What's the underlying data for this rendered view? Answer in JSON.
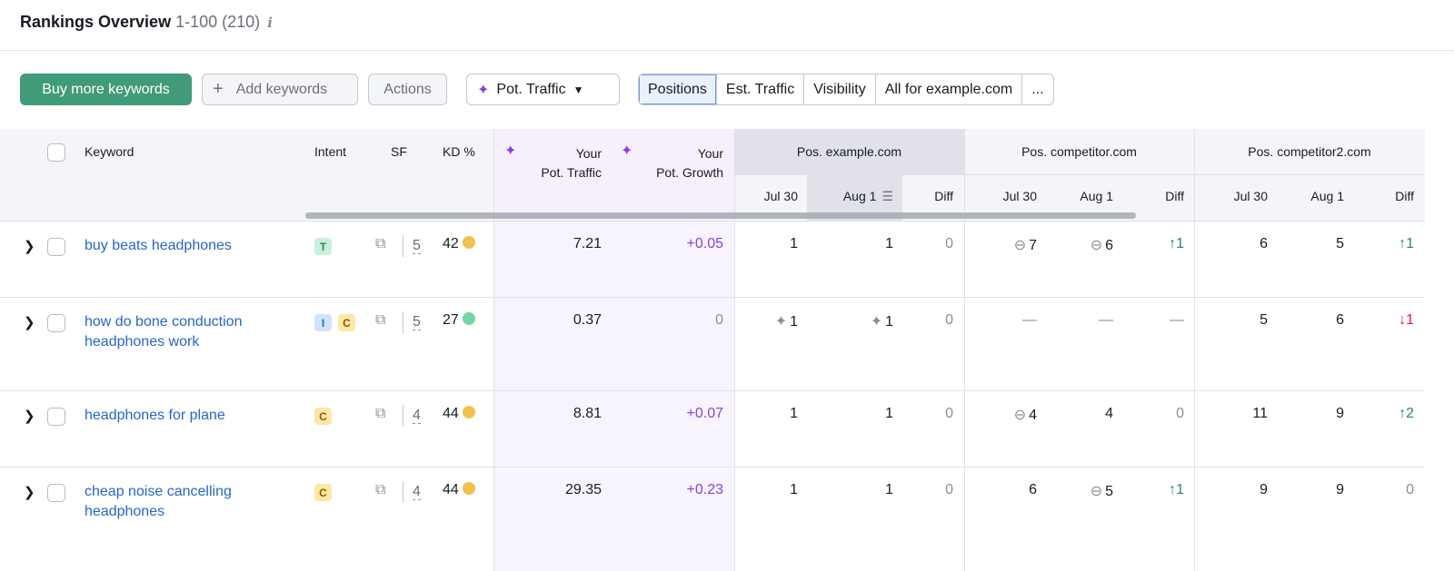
{
  "header": {
    "title": "Rankings Overview",
    "range": "1-100",
    "total": "(210)",
    "info_icon": "i"
  },
  "toolbar": {
    "buy": "Buy more keywords",
    "add": "Add keywords",
    "add_icon": "+",
    "actions": "Actions",
    "pot_traffic": "Pot. Traffic",
    "views": [
      "Positions",
      "Est. Traffic",
      "Visibility",
      "All for example.com",
      "..."
    ],
    "active_view": "Positions"
  },
  "columns": {
    "keyword": "Keyword",
    "intent": "Intent",
    "sf": "SF",
    "kd": "KD %",
    "pot_traffic": [
      "Your",
      "Pot. Traffic"
    ],
    "pot_growth": [
      "Your",
      "Pot. Growth"
    ],
    "groups": [
      "Pos. example.com",
      "Pos. competitor.com",
      "Pos. competitor2.com"
    ],
    "sub": [
      "Jul 30",
      "Aug 1",
      "Diff"
    ]
  },
  "colors": {
    "accent": "#419a78",
    "link": "#2766c9",
    "purple": "#8d3fe0",
    "up": "#2a8a5c",
    "down": "#d1202c",
    "kd_yellow": "#f3c04f",
    "kd_green": "#6fd8a4"
  },
  "rows": [
    {
      "keyword": "buy beats headphones",
      "intents": [
        "T"
      ],
      "sf": "5",
      "kd": "42",
      "kd_color": "#f3c04f",
      "pot_traffic": "7.21",
      "pot_growth": "+0.05",
      "pos": [
        [
          "1",
          "1",
          "0"
        ],
        [
          "7",
          "6",
          "↑1"
        ],
        [
          "6",
          "5",
          "↑1"
        ]
      ],
      "icons": [
        [
          "",
          "",
          ""
        ],
        [
          "link",
          "link",
          ""
        ],
        [
          "",
          "",
          ""
        ]
      ]
    },
    {
      "keyword": "how do bone conduction headphones work",
      "intents": [
        "I",
        "C"
      ],
      "sf": "5",
      "kd": "27",
      "kd_color": "#6fd8a4",
      "pot_traffic": "0.37",
      "pot_growth": "0",
      "pos": [
        [
          "1",
          "1",
          "0"
        ],
        [
          "—",
          "—",
          "—"
        ],
        [
          "5",
          "6",
          "↓1"
        ]
      ],
      "icons": [
        [
          "featured",
          "featured",
          ""
        ],
        [
          "",
          "",
          ""
        ],
        [
          "",
          "",
          ""
        ]
      ]
    },
    {
      "keyword": "headphones for plane",
      "intents": [
        "C"
      ],
      "sf": "4",
      "kd": "44",
      "kd_color": "#f3c04f",
      "pot_traffic": "8.81",
      "pot_growth": "+0.07",
      "pos": [
        [
          "1",
          "1",
          "0"
        ],
        [
          "4",
          "4",
          "0"
        ],
        [
          "11",
          "9",
          "↑2"
        ]
      ],
      "icons": [
        [
          "",
          "",
          ""
        ],
        [
          "link",
          "",
          ""
        ],
        [
          "",
          "",
          ""
        ]
      ]
    },
    {
      "keyword": "cheap noise cancelling headphones",
      "intents": [
        "C"
      ],
      "sf": "4",
      "kd": "44",
      "kd_color": "#f3c04f",
      "pot_traffic": "29.35",
      "pot_growth": "+0.23",
      "pos": [
        [
          "1",
          "1",
          "0"
        ],
        [
          "6",
          "5",
          "↑1"
        ],
        [
          "9",
          "9",
          "0"
        ]
      ],
      "icons": [
        [
          "",
          "",
          ""
        ],
        [
          "",
          "link",
          ""
        ],
        [
          "",
          "",
          ""
        ]
      ]
    }
  ]
}
